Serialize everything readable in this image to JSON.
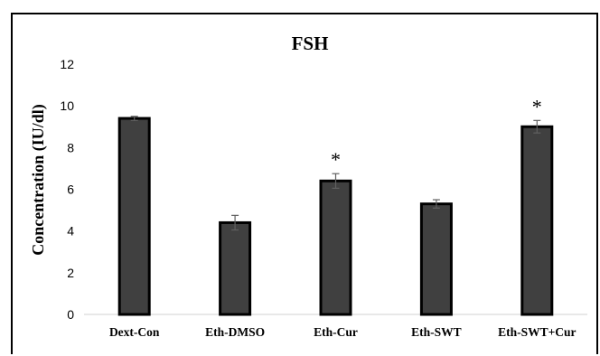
{
  "chart_data": {
    "type": "bar",
    "title": "FSH",
    "ylabel": "Concentration  (IU/dl)",
    "xlabel": "",
    "categories": [
      "Dext-Con",
      "Eth-DMSO",
      "Eth-Cur",
      "Eth-SWT",
      "Eth-SWT+Cur"
    ],
    "values": [
      9.4,
      4.4,
      6.4,
      5.3,
      9.0
    ],
    "errors": [
      0.1,
      0.35,
      0.35,
      0.2,
      0.3
    ],
    "significance": [
      "",
      "",
      "*",
      "",
      "*"
    ],
    "ylim": [
      0,
      12
    ],
    "yticks": [
      "0",
      "2",
      "4",
      "6",
      "8",
      "10",
      "12"
    ],
    "grid": false,
    "legend": "none",
    "colors": {
      "bar_fill": "#404040",
      "bar_edge": "#000000",
      "error_bar": "#606060",
      "text": "#000000"
    }
  }
}
